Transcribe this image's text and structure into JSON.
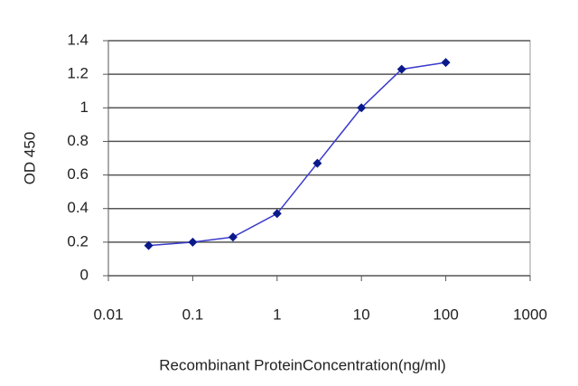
{
  "chart_data": {
    "type": "line",
    "x_label": "Recombinant ProteinConcentration(ng/ml)",
    "y_label": "OD 450",
    "x": [
      0.03,
      0.1,
      0.3,
      1,
      3,
      10,
      30,
      100
    ],
    "values": [
      0.18,
      0.2,
      0.23,
      0.37,
      0.67,
      1.0,
      1.23,
      1.27
    ],
    "color": "#3a3acc",
    "marker_color": "#0a1a8a",
    "xlim": [
      0.01,
      1000
    ],
    "xticks": [
      0.01,
      0.1,
      1,
      10,
      100,
      1000
    ],
    "xscale": "log",
    "ylim": [
      0,
      1.4
    ],
    "yticks": [
      0,
      0.2,
      0.4,
      0.6,
      0.8,
      1,
      1.2,
      1.4
    ],
    "grid": true
  }
}
